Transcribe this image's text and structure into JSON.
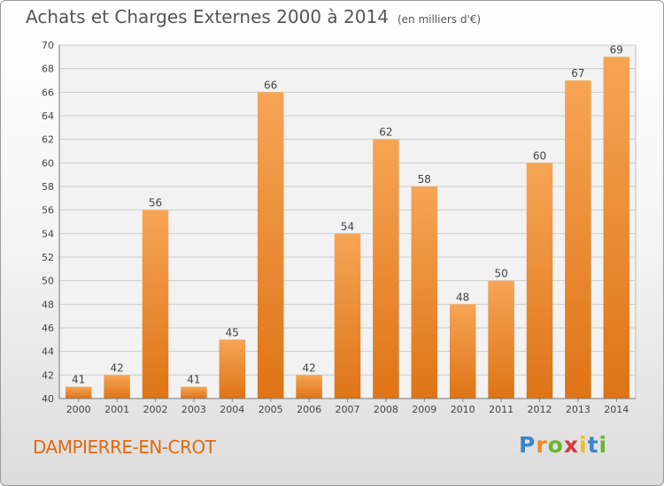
{
  "title": "Achats et Charges Externes 2000 à 2014",
  "unit": "(en milliers d'€)",
  "city": "DAMPIERRE-EN-CROT",
  "logo": {
    "letters": [
      "P",
      "r",
      "o",
      "x",
      "i",
      "t",
      "i"
    ],
    "colors": [
      "#3a86c9",
      "#f08a1c",
      "#6bb42c",
      "#d9363e",
      "#f0c020",
      "#3a86c9",
      "#6bb42c"
    ]
  },
  "colors": {
    "bar_light": "#f6a555",
    "bar_dark": "#de7416",
    "grid": "#cccccc",
    "text": "#444444"
  },
  "chart_data": {
    "type": "bar",
    "title": "Achats et Charges Externes 2000 à 2014",
    "ylabel": "",
    "xlabel": "",
    "categories": [
      "2000",
      "2001",
      "2002",
      "2003",
      "2004",
      "2005",
      "2006",
      "2007",
      "2008",
      "2009",
      "2010",
      "2011",
      "2012",
      "2013",
      "2014"
    ],
    "values": [
      41,
      42,
      56,
      41,
      45,
      66,
      42,
      54,
      62,
      58,
      48,
      50,
      60,
      67,
      69
    ],
    "ylim": [
      40,
      70
    ],
    "yticks": [
      40,
      42,
      44,
      46,
      48,
      50,
      52,
      54,
      56,
      58,
      60,
      62,
      64,
      66,
      68,
      70
    ],
    "grid": true
  }
}
